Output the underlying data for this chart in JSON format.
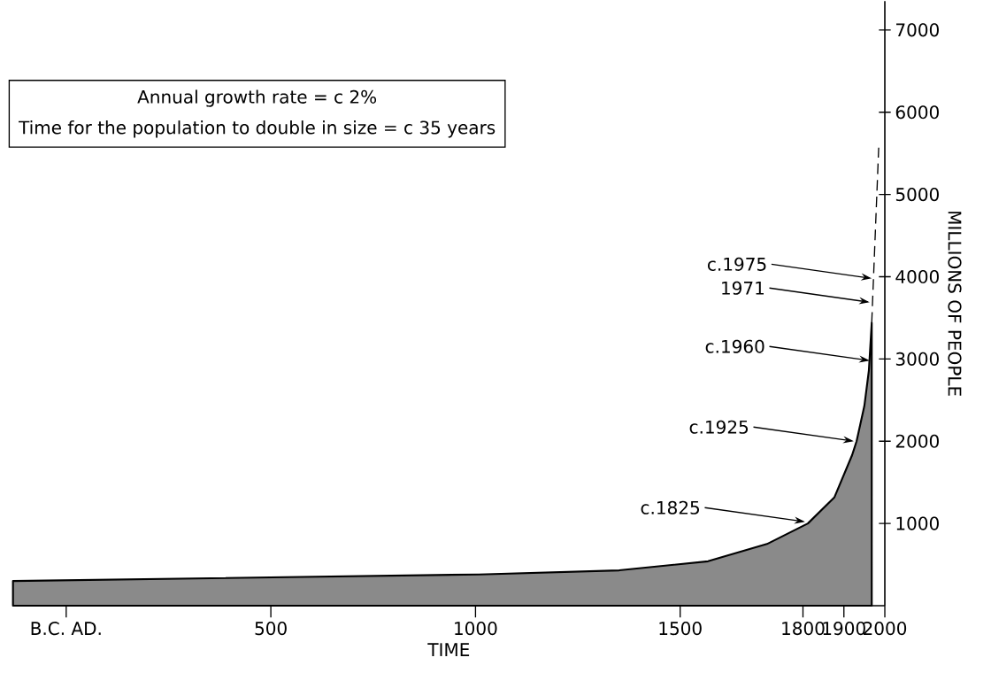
{
  "chart_data": {
    "type": "area",
    "xlabel": "TIME",
    "ylabel": "MILLIONS OF PEOPLE",
    "xlim": [
      -130,
      2000
    ],
    "ylim": [
      0,
      7350
    ],
    "xticks": [
      {
        "value": 0,
        "label": "B.C. AD."
      },
      500,
      1000,
      1500,
      1800,
      1900,
      2000
    ],
    "yticks": [
      1000,
      2000,
      3000,
      4000,
      5000,
      6000,
      7000
    ],
    "series": [
      {
        "color": "#8a8a8a",
        "x": [
          -130,
          1008,
          1351,
          1568,
          1712,
          1812,
          1877,
          1920,
          1931,
          1950,
          1961,
          1968
        ],
        "values": [
          300,
          380,
          430,
          540,
          750,
          1000,
          1320,
          1830,
          2000,
          2430,
          2860,
          3440
        ]
      },
      {
        "type": "line",
        "line_style": "dashed",
        "color": "#000000",
        "x": [
          1968,
          1985
        ],
        "values": [
          3440,
          5570
        ]
      }
    ],
    "annotations": [
      "Annual growth rate = c 2%",
      "Time for the population to double in size = c 35 years",
      {
        "text": "c.1975",
        "x": 1968,
        "y": 3980
      },
      {
        "text": "1971",
        "x": 1963,
        "y": 3690
      },
      {
        "text": "c.1960",
        "x": 1963,
        "y": 2980
      },
      {
        "text": "c.1925",
        "x": 1924,
        "y": 2000
      },
      {
        "text": "c.1825",
        "x": 1805,
        "y": 1020
      }
    ]
  }
}
